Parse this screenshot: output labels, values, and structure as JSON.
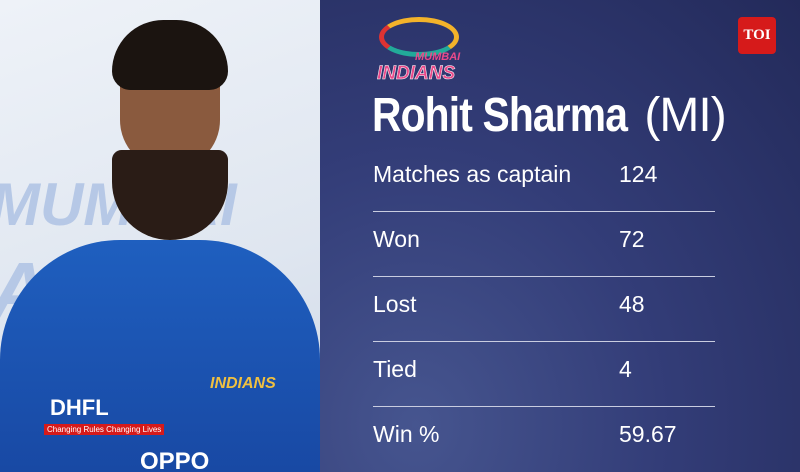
{
  "header": {
    "team_logo_text": [
      "MUMBAI",
      "INDIANS"
    ],
    "publisher_badge": "TOI",
    "player_name": "Rohit Sharma",
    "team_tag": "(MI)"
  },
  "photo": {
    "background_text": [
      "MUMBAI",
      "A"
    ],
    "sponsor": "DHFL",
    "sponsor_tagline": "Changing Rules Changing Lives",
    "chest_logo": "INDIANS",
    "bottom_logo": "OPPO"
  },
  "stats": [
    {
      "label": "Matches as captain",
      "value": "124"
    },
    {
      "label": "Won",
      "value": "72"
    },
    {
      "label": "Lost",
      "value": "48"
    },
    {
      "label": "Tied",
      "value": "4"
    },
    {
      "label": "Win %",
      "value": "59.67"
    }
  ],
  "colors": {
    "panel": "#2f3870",
    "badge": "#d61a1a"
  }
}
